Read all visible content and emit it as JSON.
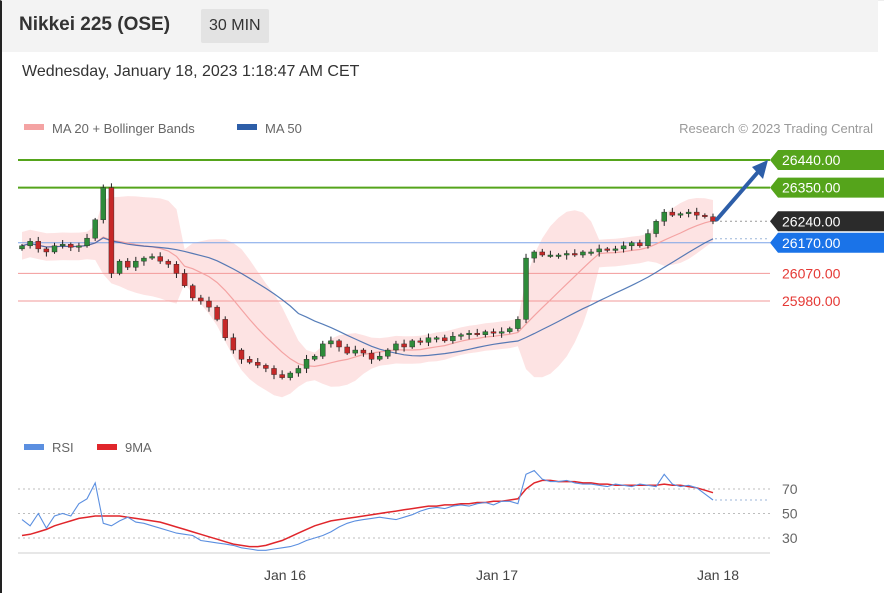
{
  "header": {
    "title": "Nikkei 225 (OSE)",
    "interval": "30 MIN"
  },
  "datetime": "Wednesday, January 18, 2023 1:18:47 AM CET",
  "chart_data": {
    "type": "candlestick",
    "credit": "Research © 2023 Trading Central",
    "legend": [
      {
        "name": "MA 20 + Bollinger Bands",
        "color": "#f4a3a3"
      },
      {
        "name": "MA 50",
        "color": "#2d5ea8"
      }
    ],
    "x_ticks": [
      "Jan 16",
      "Jan 17",
      "Jan 18"
    ],
    "levels": [
      {
        "value": 26440,
        "label": "26440.00",
        "type": "target",
        "color": "#55a41b"
      },
      {
        "value": 26350,
        "label": "26350.00",
        "type": "resistance",
        "color": "#55a41b"
      },
      {
        "value": 26240,
        "label": "26240.00",
        "type": "last",
        "color": "#2b2b2b"
      },
      {
        "value": 26170,
        "label": "26170.00",
        "type": "pivot",
        "color": "#1a73e8"
      },
      {
        "value": 26070,
        "label": "26070.00",
        "type": "support",
        "color": "#e53935"
      },
      {
        "value": 25980,
        "label": "25980.00",
        "type": "support",
        "color": "#e53935"
      }
    ],
    "price_series": [
      26160,
      26175,
      26150,
      26140,
      26160,
      26165,
      26155,
      26160,
      26185,
      26245,
      26350,
      26070,
      26110,
      26090,
      26110,
      26120,
      26125,
      26110,
      26100,
      26070,
      26030,
      25990,
      25980,
      25960,
      25920,
      25860,
      25820,
      25790,
      25780,
      25770,
      25760,
      25740,
      25730,
      25745,
      25760,
      25790,
      25800,
      25840,
      25850,
      25830,
      25810,
      25820,
      25810,
      25790,
      25800,
      25820,
      25840,
      25830,
      25850,
      25845,
      25860,
      25860,
      25850,
      25865,
      25870,
      25875,
      25870,
      25880,
      25875,
      25880,
      25890,
      25920,
      26120,
      26140,
      26130,
      26130,
      26130,
      26135,
      26130,
      26140,
      26140,
      26150,
      26145,
      26150,
      26160,
      26170,
      26160,
      26200,
      26240,
      26270,
      26260,
      26265,
      26270,
      26260,
      26255,
      26240
    ],
    "rsi": {
      "legend": [
        {
          "name": "RSI",
          "color": "#5b8fe0"
        },
        {
          "name": "9MA",
          "color": "#e0262b"
        }
      ],
      "levels": [
        {
          "value": 70,
          "label": "70"
        },
        {
          "value": 50,
          "label": "50"
        },
        {
          "value": 30,
          "label": "30"
        }
      ],
      "ylim": [
        20,
        90
      ],
      "rsi_values": [
        45,
        40,
        50,
        38,
        48,
        50,
        48,
        58,
        62,
        75,
        42,
        40,
        44,
        47,
        43,
        42,
        40,
        38,
        36,
        34,
        33,
        32,
        28,
        27,
        26,
        25,
        24,
        22,
        21,
        20,
        20,
        21,
        22,
        23,
        25,
        28,
        30,
        32,
        35,
        39,
        42,
        44,
        45,
        46,
        47,
        46,
        45,
        47,
        49,
        52,
        54,
        55,
        54,
        56,
        57,
        56,
        58,
        59,
        57,
        60,
        60,
        58,
        82,
        85,
        78,
        76,
        76,
        77,
        75,
        74,
        74,
        73,
        72,
        74,
        73,
        72,
        74,
        73,
        72,
        82,
        74,
        72,
        73,
        71,
        66,
        61
      ],
      "ma_values": [
        32,
        33,
        35,
        37,
        40,
        42,
        44,
        46,
        47,
        48,
        48,
        48,
        48,
        47,
        46,
        45,
        44,
        43,
        41,
        39,
        37,
        35,
        33,
        31,
        29,
        27,
        25,
        24,
        23,
        23,
        24,
        26,
        28,
        31,
        34,
        37,
        40,
        42,
        44,
        45,
        46,
        47,
        48,
        49,
        50,
        51,
        52,
        53,
        54,
        55,
        56,
        56,
        57,
        57,
        58,
        58,
        59,
        59,
        60,
        60,
        61,
        62,
        70,
        75,
        77,
        77,
        76,
        76,
        76,
        75,
        75,
        74,
        74,
        73,
        73,
        73,
        73,
        73,
        73,
        74,
        73,
        73,
        72,
        71,
        69,
        67
      ]
    }
  }
}
